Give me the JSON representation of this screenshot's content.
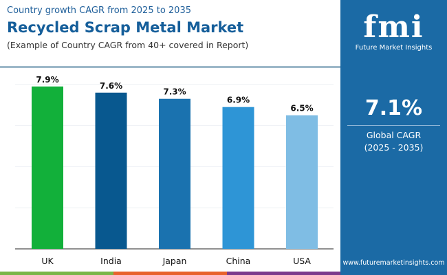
{
  "header": {
    "subtitle": "Country growth CAGR from 2025 to 2035",
    "title": "Recycled Scrap Metal Market",
    "note": "(Example of Country CAGR from 40+ covered in Report)"
  },
  "panel": {
    "logo_letters": "fmi",
    "logo_name": "Future Market Insights",
    "cagr_value": "7.1%",
    "cagr_label": "Global CAGR",
    "cagr_period": "(2025 - 2035)",
    "url": "www.futuremarketinsights.com",
    "color": "#1b6aa5"
  },
  "strip_colors": [
    "#7ab648",
    "#e8622c",
    "#7b3a8c"
  ],
  "chart_data": {
    "type": "bar",
    "categories": [
      "UK",
      "India",
      "Japan",
      "China",
      "USA"
    ],
    "values": [
      7.9,
      7.6,
      7.3,
      6.9,
      6.5
    ],
    "labels": [
      "7.9%",
      "7.6%",
      "7.3%",
      "6.9%",
      "6.5%"
    ],
    "colors": [
      "#12b03a",
      "#08588f",
      "#1a72af",
      "#2e95d6",
      "#7fbde4"
    ],
    "ylim": [
      0,
      8.2
    ],
    "grid": true
  }
}
